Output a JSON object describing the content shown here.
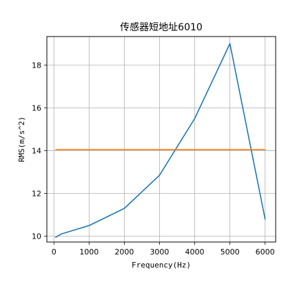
{
  "chart_data": {
    "type": "line",
    "title": "传感器短地址6010",
    "xlabel": "Frequency(Hz)",
    "ylabel": "RMS(m/s^2)",
    "xlim": [
      -200,
      6300
    ],
    "ylim": [
      9.73,
      19.33
    ],
    "xticks": [
      0,
      1000,
      2000,
      3000,
      4000,
      5000,
      6000
    ],
    "yticks": [
      10,
      12,
      14,
      16,
      18
    ],
    "grid": true,
    "series": [
      {
        "color": "#1f77b4",
        "x": [
          50,
          100,
          200,
          500,
          1000,
          2000,
          3000,
          4000,
          5000,
          6000
        ],
        "y": [
          9.95,
          10.0,
          10.1,
          10.25,
          10.5,
          11.3,
          12.85,
          15.5,
          19.0,
          10.8
        ]
      },
      {
        "color": "#ff7f0e",
        "x": [
          50,
          6000
        ],
        "y": [
          14.05,
          14.05
        ]
      }
    ]
  }
}
